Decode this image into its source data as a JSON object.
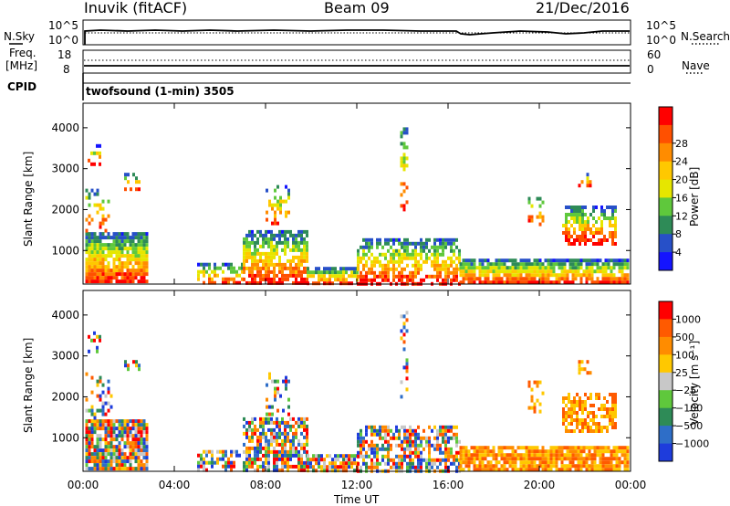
{
  "header": {
    "station": "Inuvik (fitACF)",
    "beam": "Beam 09",
    "date": "21/Dec/2016"
  },
  "ctrl": {
    "nsky_label": "N.Sky",
    "nsearch_label": "N.Search",
    "freq_label_1": "Freq.",
    "freq_label_2": "[MHz]",
    "nave_label": "Nave",
    "cpid_label": "CPID",
    "cpid_value": "twofsound (1-min) 3505",
    "noise_left_ticks": [
      "10^5",
      "10^0"
    ],
    "noise_right_ticks": [
      "10^5",
      "10^0"
    ],
    "freq_left_ticks": [
      "18",
      "8"
    ],
    "freq_right_ticks": [
      "60",
      "0"
    ]
  },
  "chart_data": [
    {
      "type": "heatmap",
      "name_panel": "power",
      "ylabel": "Slant Range [km]",
      "xlabel": "Time UT",
      "x_ticks": [
        "00:00",
        "04:00",
        "08:00",
        "12:00",
        "16:00",
        "20:00",
        "00:00"
      ],
      "y_ticks": [
        1000,
        2000,
        3000,
        4000
      ],
      "ylim": [
        180,
        4600
      ],
      "colorbar": {
        "label": "Power [dB]",
        "ticks": [
          "4",
          "8",
          "12",
          "16",
          "20",
          "24",
          "28"
        ],
        "colors": [
          "#1414ff",
          "#2750c8",
          "#2e8b57",
          "#5fc83c",
          "#e6e600",
          "#ffc800",
          "#ff8c00",
          "#ff5000",
          "#ff0000"
        ]
      }
    },
    {
      "type": "heatmap",
      "name_panel": "velocity",
      "ylabel": "Slant Range [km]",
      "xlabel": "Time UT",
      "x_ticks": [
        "00:00",
        "04:00",
        "08:00",
        "12:00",
        "16:00",
        "20:00",
        "00:00"
      ],
      "y_ticks": [
        1000,
        2000,
        3000,
        4000
      ],
      "ylim": [
        180,
        4600
      ],
      "colorbar": {
        "label": "Velocity [m s⁻¹]",
        "ticks": [
          "1000",
          "500",
          "100",
          "25",
          "−25",
          "−100",
          "−500",
          "−1000"
        ],
        "colors": [
          "#1e3cdc",
          "#2e6ec8",
          "#2e8b57",
          "#5fc83c",
          "#c8c8c8",
          "#ffc800",
          "#ff8c00",
          "#ff5a00",
          "#ff0000"
        ]
      }
    }
  ]
}
